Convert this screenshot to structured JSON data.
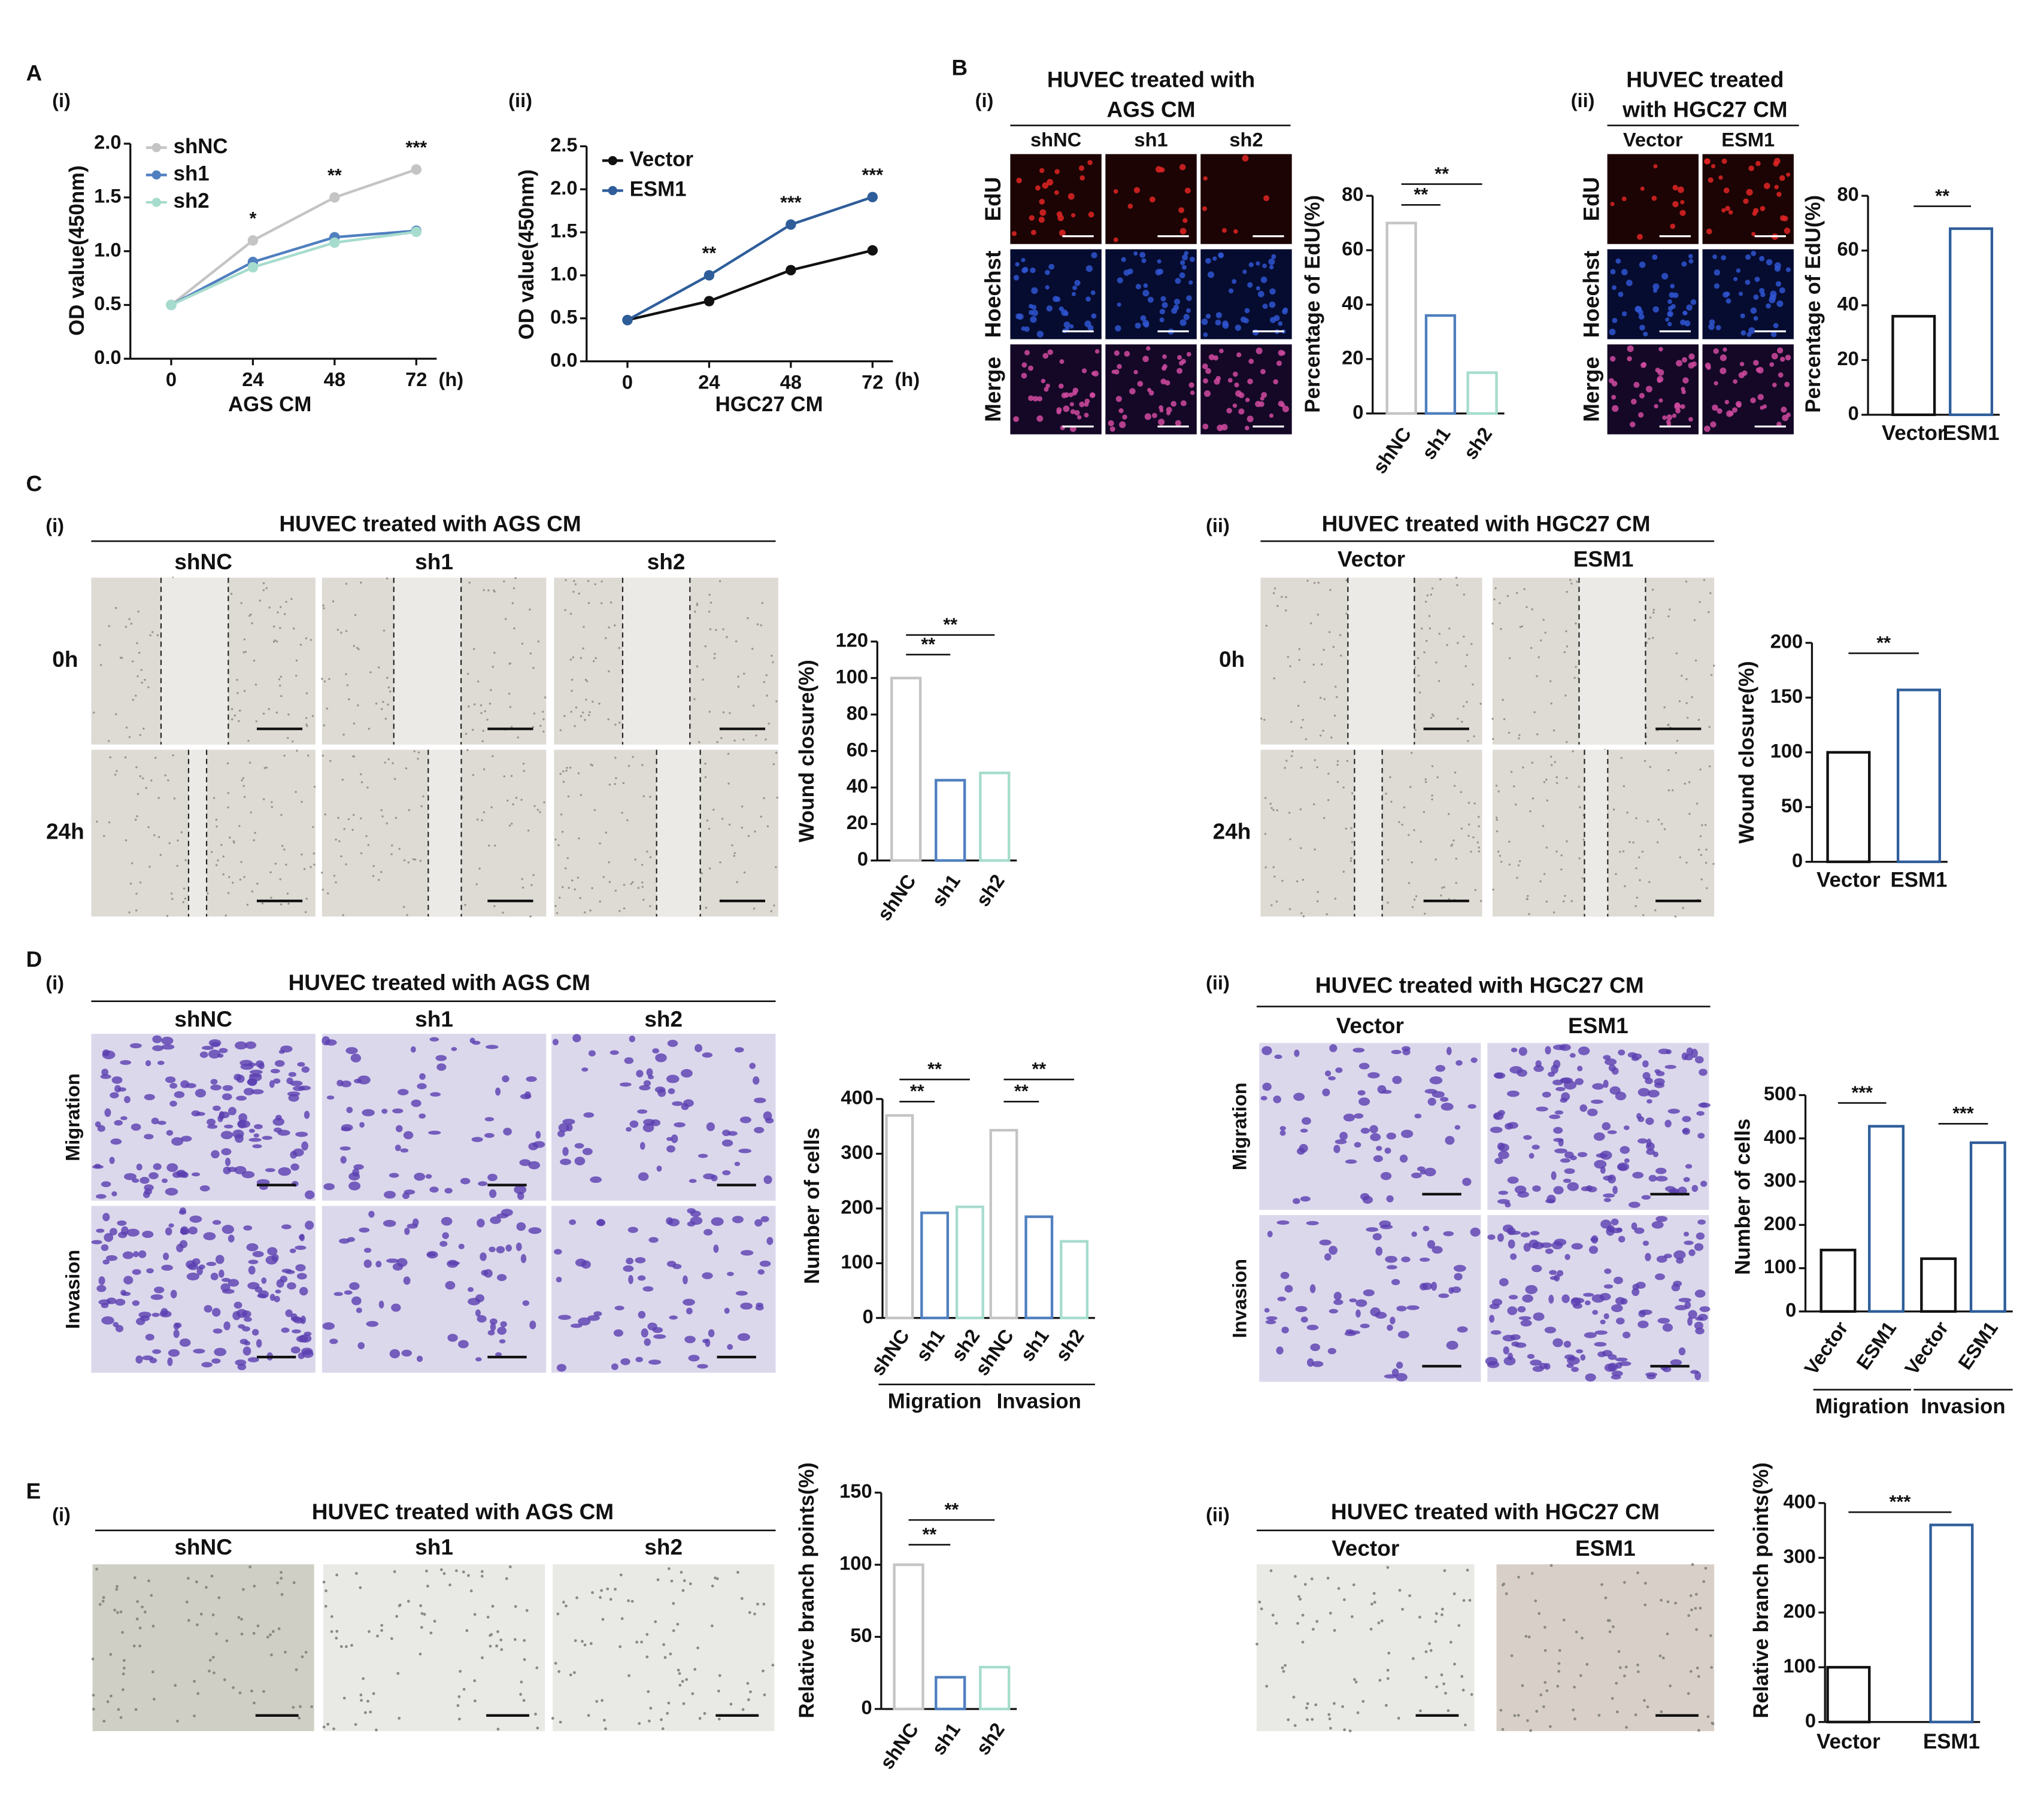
{
  "figure": {
    "panel_letters": [
      "A",
      "B",
      "C",
      "D",
      "E"
    ],
    "sublabels": [
      "(i)",
      "(ii)",
      "(i)",
      "(ii)",
      "(i)",
      "(ii)",
      "(i)",
      "(ii)",
      "(i)",
      "(ii)"
    ]
  },
  "photo_panels": [
    {
      "title": [
        "HUVEC treated with",
        "AGS CM"
      ],
      "columns": [
        "shNC",
        "sh1",
        "sh2"
      ],
      "rows": [
        "EdU",
        "Hoechst",
        "Merge"
      ]
    },
    {
      "title": [
        "HUVEC treated",
        "with HGC27 CM"
      ],
      "columns": [
        "Vector",
        "ESM1"
      ],
      "rows": [
        "EdU",
        "Hoechst",
        "Merge"
      ]
    },
    {
      "title": [
        "HUVEC treated with AGS CM"
      ],
      "columns": [
        "shNC",
        "sh1",
        "sh2"
      ],
      "rows": [
        "0h",
        "24h"
      ]
    },
    {
      "title": [
        "HUVEC treated with HGC27 CM"
      ],
      "columns": [
        "Vector",
        "ESM1"
      ],
      "rows": [
        "0h",
        "24h"
      ]
    },
    {
      "title": [
        "HUVEC treated with AGS CM"
      ],
      "columns": [
        "shNC",
        "sh1",
        "sh2"
      ],
      "rows": [
        "Migration",
        "Invasion"
      ]
    },
    {
      "title": [
        "HUVEC treated with HGC27 CM"
      ],
      "columns": [
        "Vector",
        "ESM1"
      ],
      "rows": [
        "Migration",
        "Invasion"
      ]
    },
    {
      "title": [
        "HUVEC treated with AGS CM"
      ],
      "columns": [
        "shNC",
        "sh1",
        "sh2"
      ]
    },
    {
      "title": [
        "HUVEC treated with HGC27 CM"
      ],
      "columns": [
        "Vector",
        "ESM1"
      ]
    }
  ],
  "chart_data": [
    {
      "type": "line",
      "x_label": "AGS CM",
      "x_unit": "(h)",
      "y_label": "OD value(450nm)",
      "x": [
        0,
        24,
        48,
        72
      ],
      "xlim": [
        -12,
        78
      ],
      "xticks": [
        0,
        24,
        48,
        72
      ],
      "ylim": [
        0,
        2
      ],
      "yticks": [
        {
          "value": 0,
          "label": "0.0"
        },
        {
          "value": 0.5,
          "label": "0.5"
        },
        {
          "value": 1,
          "label": "1.0"
        },
        {
          "value": 1.5,
          "label": "1.5"
        },
        {
          "value": 2,
          "label": "2.0"
        }
      ],
      "series": [
        {
          "name": "shNC",
          "color": "#c4c4c4",
          "values": [
            0.5,
            1.1,
            1.5,
            1.76
          ]
        },
        {
          "name": "sh1",
          "color": "#4f7fbf",
          "values": [
            0.5,
            0.9,
            1.13,
            1.19
          ]
        },
        {
          "name": "sh2",
          "color": "#a6dccd",
          "values": [
            0.5,
            0.85,
            1.08,
            1.18
          ]
        }
      ],
      "annotations": [
        {
          "x": 24,
          "label": "*"
        },
        {
          "x": 48,
          "label": "**"
        },
        {
          "x": 72,
          "label": "***"
        }
      ]
    },
    {
      "type": "line",
      "x_label": "HGC27 CM",
      "x_unit": "(h)",
      "y_label": "OD value(450nm)",
      "x": [
        0,
        24,
        48,
        72
      ],
      "xlim": [
        -12,
        78
      ],
      "xticks": [
        0,
        24,
        48,
        72
      ],
      "ylim": [
        0,
        2.5
      ],
      "yticks": [
        {
          "value": 0,
          "label": "0.0"
        },
        {
          "value": 0.5,
          "label": "0.5"
        },
        {
          "value": 1,
          "label": "1.0"
        },
        {
          "value": 1.5,
          "label": "1.5"
        },
        {
          "value": 2,
          "label": "2.0"
        },
        {
          "value": 2.5,
          "label": "2.5"
        }
      ],
      "series": [
        {
          "name": "Vector",
          "color": "#111111",
          "values": [
            0.48,
            0.7,
            1.06,
            1.29
          ]
        },
        {
          "name": "ESM1",
          "color": "#2e5d9a",
          "values": [
            0.48,
            1.0,
            1.59,
            1.91
          ]
        }
      ],
      "annotations": [
        {
          "x": 24,
          "label": "**"
        },
        {
          "x": 48,
          "label": "***"
        },
        {
          "x": 72,
          "label": "***"
        }
      ]
    },
    {
      "type": "bar",
      "y_label": "Percentage of EdU(%)",
      "categories": [
        "shNC",
        "sh1",
        "sh2"
      ],
      "values": [
        70,
        36,
        15
      ],
      "colors": [
        "#c4c4c4",
        "#4f7fbf",
        "#a6dccd"
      ],
      "ylim": [
        0,
        80
      ],
      "yticks": [
        0,
        20,
        40,
        60,
        80
      ],
      "annotations": [
        "**",
        "**"
      ]
    },
    {
      "type": "bar",
      "y_label": "Percentage of EdU(%)",
      "categories": [
        "Vector",
        "ESM1"
      ],
      "values": [
        36,
        68
      ],
      "colors": [
        "#111111",
        "#2e5d9a"
      ],
      "ylim": [
        0,
        80
      ],
      "yticks": [
        0,
        20,
        40,
        60,
        80
      ],
      "annotations": [
        "**"
      ]
    },
    {
      "type": "bar",
      "y_label": "Wound closure(%)",
      "categories": [
        "shNC",
        "sh1",
        "sh2"
      ],
      "values": [
        100,
        44,
        48
      ],
      "colors": [
        "#c4c4c4",
        "#4f7fbf",
        "#a6dccd"
      ],
      "ylim": [
        0,
        120
      ],
      "yticks": [
        0,
        20,
        40,
        60,
        80,
        100,
        120
      ],
      "annotations": [
        "**",
        "**"
      ]
    },
    {
      "type": "bar",
      "y_label": "Wound closure(%)",
      "categories": [
        "Vector",
        "ESM1"
      ],
      "values": [
        100,
        157
      ],
      "colors": [
        "#111111",
        "#2e5d9a"
      ],
      "ylim": [
        0,
        200
      ],
      "yticks": [
        0,
        50,
        100,
        150,
        200
      ],
      "annotations": [
        "**"
      ]
    },
    {
      "type": "bar",
      "y_label": "Number of cells",
      "categories": [
        "shNC",
        "sh1",
        "sh2",
        "shNC",
        "sh1",
        "sh2"
      ],
      "values": [
        370,
        192,
        203,
        343,
        185,
        140
      ],
      "colors": [
        "#c4c4c4",
        "#4f7fbf",
        "#a6dccd",
        "#c4c4c4",
        "#4f7fbf",
        "#a6dccd"
      ],
      "groups": [
        "Migration",
        "Invasion"
      ],
      "ylim": [
        0,
        400
      ],
      "yticks": [
        0,
        100,
        200,
        300,
        400
      ],
      "annotations": [
        "**",
        "**",
        "**",
        "**"
      ]
    },
    {
      "type": "bar",
      "y_label": "Number of cells",
      "categories": [
        "Vector",
        "ESM1",
        "Vector",
        "ESM1"
      ],
      "values": [
        142,
        428,
        122,
        390
      ],
      "colors": [
        "#111111",
        "#2e5d9a",
        "#111111",
        "#2e5d9a"
      ],
      "groups": [
        "Migration",
        "Invasion"
      ],
      "ylim": [
        0,
        500
      ],
      "yticks": [
        0,
        100,
        200,
        300,
        400,
        500
      ],
      "annotations": [
        "***",
        "***"
      ]
    },
    {
      "type": "bar",
      "y_label": "Relative branch points(%)",
      "categories": [
        "shNC",
        "sh1",
        "sh2"
      ],
      "values": [
        100,
        22,
        29
      ],
      "colors": [
        "#c4c4c4",
        "#4f7fbf",
        "#a6dccd"
      ],
      "ylim": [
        0,
        150
      ],
      "yticks": [
        0,
        50,
        100,
        150
      ],
      "annotations": [
        "**",
        "**"
      ]
    },
    {
      "type": "bar",
      "y_label": "Relative branch points(%)",
      "categories": [
        "Vector",
        "ESM1"
      ],
      "values": [
        100,
        360
      ],
      "colors": [
        "#111111",
        "#2e5d9a"
      ],
      "ylim": [
        0,
        400
      ],
      "yticks": [
        0,
        100,
        200,
        300,
        400
      ],
      "annotations": [
        "***"
      ]
    }
  ]
}
